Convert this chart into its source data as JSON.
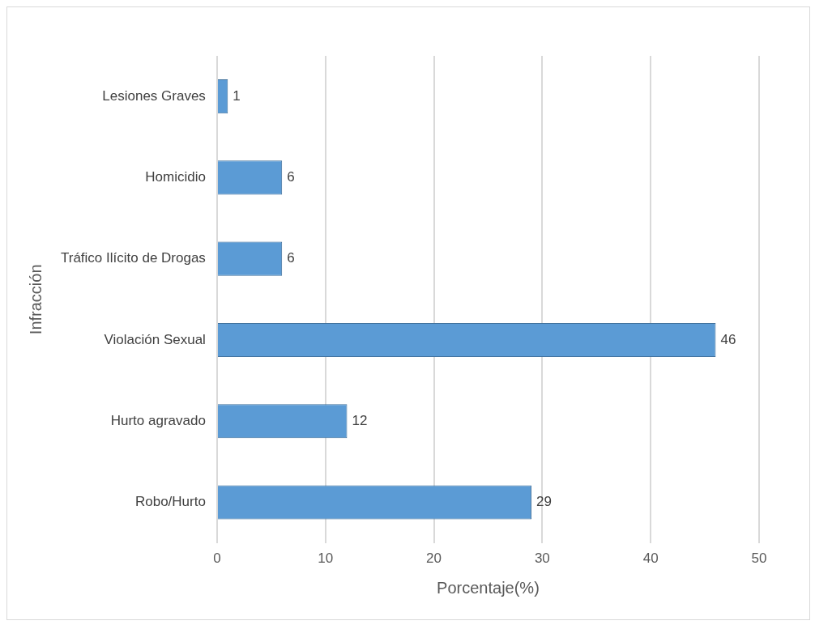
{
  "chart_data": {
    "type": "bar",
    "orientation": "horizontal",
    "categories": [
      "Lesiones Graves",
      "Homicidio",
      "Tráfico Ilícito de Drogas",
      "Violación Sexual",
      "Hurto agravado",
      "Robo/Hurto"
    ],
    "values": [
      1,
      6,
      6,
      46,
      12,
      29
    ],
    "color": "#5b9bd5",
    "xlabel": "Porcentaje(%)",
    "ylabel": "Infracción",
    "xlim": [
      0,
      50
    ],
    "xticks": [
      0,
      10,
      20,
      30,
      40,
      50
    ],
    "grid": "x",
    "data_labels": true,
    "legend": false
  }
}
